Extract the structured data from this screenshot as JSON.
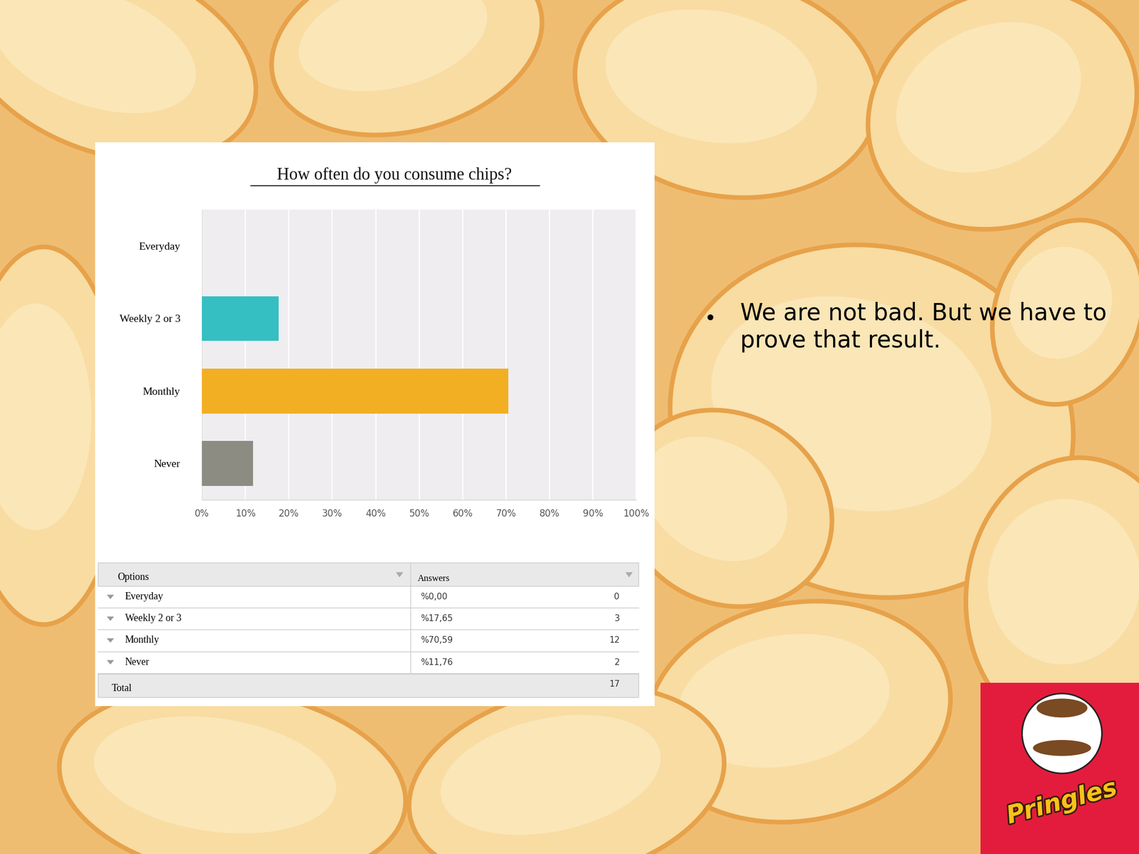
{
  "chart_data": {
    "type": "bar",
    "title": "How often do you consume chips?",
    "orientation": "horizontal",
    "categories": [
      "Everyday",
      "Weekly 2 or 3",
      "Monthly",
      "Never"
    ],
    "values": [
      0,
      17.65,
      70.59,
      11.76
    ],
    "colors": [
      "#35bfc2",
      "#35bfc2",
      "#f2af24",
      "#8c8c82"
    ],
    "xlim": [
      0,
      100
    ],
    "xticks": [
      {
        "value": 0,
        "label": "0%"
      },
      {
        "value": 10,
        "label": "10%"
      },
      {
        "value": 20,
        "label": "20%"
      },
      {
        "value": 30,
        "label": "30%"
      },
      {
        "value": 40,
        "label": "40%"
      },
      {
        "value": 50,
        "label": "50%"
      },
      {
        "value": 60,
        "label": "60%"
      },
      {
        "value": 70,
        "label": "70%"
      },
      {
        "value": 80,
        "label": "80%"
      },
      {
        "value": 90,
        "label": "90%"
      },
      {
        "value": 100,
        "label": "100%"
      }
    ],
    "grid": true
  },
  "table": {
    "header": [
      "Options",
      "Answers"
    ],
    "rows": [
      [
        "Everyday",
        "%0,00",
        0
      ],
      [
        "Weekly 2 or 3",
        "%17,65",
        3
      ],
      [
        "Monthly",
        "%70,59",
        12
      ],
      [
        "Never",
        "%11,76",
        2
      ]
    ],
    "total": [
      "Total",
      17
    ]
  },
  "bullet": "We are not bad. But we have to prove that result.",
  "logo": "Pringles"
}
